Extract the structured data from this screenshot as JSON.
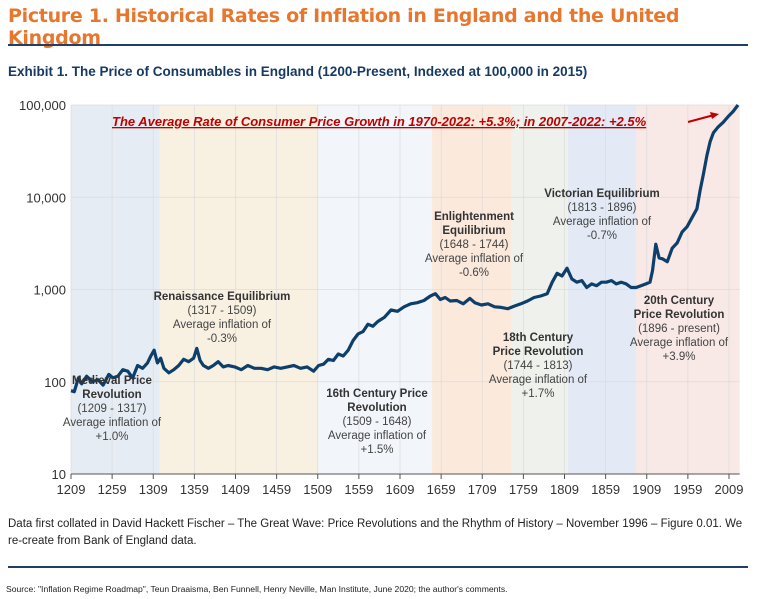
{
  "page_title": "Picture 1. Historical Rates of Inflation in England and the United Kingdom",
  "exhibit_title": "Exhibit 1. The Price of Consumables in England (1200-Present, Indexed at 100,000 in 2015)",
  "footnote": "Data first collated in David Hackett Fischer – The Great Wave: Price Revolutions and the Rhythm of History – November 1996 – Figure 0.01. We re-create from Bank of England data.",
  "source": "Source: \"Inflation Regime Roadmap\", Teun Draaisma, Ben Funnell, Henry Neville, Man Institute, June 2020; the author's comments.",
  "colors": {
    "title": "#E8772E",
    "line": "#0E3F6B",
    "annotation": "#C00000",
    "rule": "#1F3F66"
  },
  "chart_data": {
    "type": "line",
    "title": "Exhibit 1. The Price of Consumables in England (1200-Present, Indexed at 100,000 in 2015)",
    "yscale": "log",
    "ylim": [
      10,
      100000
    ],
    "xlim": [
      1209,
      2022
    ],
    "grid": true,
    "y_ticks": [
      "10",
      "100",
      "1,000",
      "10,000",
      "100,000"
    ],
    "x_ticks": [
      "1209",
      "1259",
      "1309",
      "1359",
      "1409",
      "1459",
      "1509",
      "1559",
      "1609",
      "1659",
      "1709",
      "1759",
      "1809",
      "1859",
      "1909",
      "1959",
      "2009"
    ],
    "annotation": "The Average Rate of Consumer Price Growth in 1970-2022: +5.3%; in 2007-2022: +2.5%",
    "periods": [
      {
        "name": "Medieval Price Revolution",
        "range": "(1209 - 1317)",
        "inflation_label": "Average inflation of",
        "inflation": "+1.0%",
        "start": 1209,
        "end": 1317,
        "color": "#E6ECF4"
      },
      {
        "name": "Renaissance Equilibrium",
        "range": "(1317 - 1509)",
        "inflation_label": "Average inflation of",
        "inflation": "-0.3%",
        "start": 1317,
        "end": 1509,
        "color": "#F8F1E2"
      },
      {
        "name": "16th Century Price Revolution",
        "range": "(1509 - 1648)",
        "inflation_label": "Average inflation of",
        "inflation": "+1.5%",
        "start": 1509,
        "end": 1648,
        "color": "#F2F5FA"
      },
      {
        "name": "Enlightenment Equilibrium",
        "range": "(1648 - 1744)",
        "inflation_label": "Average inflation of",
        "inflation": "-0.6%",
        "start": 1648,
        "end": 1744,
        "color": "#FBE9DC"
      },
      {
        "name": "18th Century Price Revolution",
        "range": "(1744 - 1813)",
        "inflation_label": "Average inflation of",
        "inflation": "+1.7%",
        "start": 1744,
        "end": 1813,
        "color": "#EEF1EC"
      },
      {
        "name": "Victorian Equilibrium",
        "range": "(1813 - 1896)",
        "inflation_label": "Average inflation of",
        "inflation": "-0.7%",
        "start": 1813,
        "end": 1896,
        "color": "#E3EAF5"
      },
      {
        "name": "20th Century Price Revolution",
        "range": "(1896 - present)",
        "inflation_label": "Average inflation of",
        "inflation": "+3.9%",
        "start": 1896,
        "end": 2022,
        "color": "#F8E8E6"
      }
    ],
    "series": [
      {
        "x": [
          1209,
          1213,
          1218,
          1222,
          1228,
          1235,
          1242,
          1248,
          1255,
          1260,
          1266,
          1272,
          1278,
          1284,
          1290,
          1296,
          1302,
          1306,
          1310,
          1314,
          1318,
          1322,
          1328,
          1334,
          1340,
          1346,
          1352,
          1358,
          1362,
          1366,
          1370,
          1376,
          1382,
          1388,
          1394,
          1400,
          1408,
          1416,
          1424,
          1432,
          1440,
          1448,
          1456,
          1464,
          1472,
          1480,
          1488,
          1496,
          1504,
          1510,
          1516,
          1522,
          1528,
          1534,
          1540,
          1546,
          1552,
          1558,
          1564,
          1570,
          1576,
          1582,
          1590,
          1598,
          1606,
          1614,
          1622,
          1630,
          1638,
          1646,
          1652,
          1658,
          1664,
          1670,
          1678,
          1686,
          1694,
          1700,
          1708,
          1716,
          1724,
          1732,
          1740,
          1748,
          1756,
          1764,
          1772,
          1780,
          1788,
          1794,
          1800,
          1806,
          1812,
          1818,
          1824,
          1830,
          1836,
          1842,
          1848,
          1854,
          1860,
          1866,
          1872,
          1878,
          1884,
          1890,
          1896,
          1902,
          1908,
          1913,
          1916,
          1920,
          1924,
          1928,
          1934,
          1940,
          1946,
          1952,
          1958,
          1964,
          1970,
          1974,
          1978,
          1982,
          1986,
          1990,
          1996,
          2002,
          2008,
          2014,
          2020
        ],
        "y": [
          80,
          78,
          110,
          95,
          115,
          100,
          105,
          92,
          120,
          110,
          115,
          135,
          130,
          110,
          150,
          140,
          160,
          190,
          220,
          160,
          180,
          140,
          125,
          135,
          150,
          175,
          165,
          180,
          230,
          170,
          150,
          140,
          150,
          165,
          145,
          150,
          145,
          135,
          150,
          140,
          140,
          135,
          145,
          140,
          145,
          150,
          140,
          145,
          130,
          150,
          155,
          175,
          170,
          200,
          190,
          220,
          280,
          330,
          350,
          420,
          400,
          450,
          500,
          600,
          580,
          650,
          700,
          720,
          760,
          850,
          900,
          780,
          820,
          750,
          760,
          700,
          800,
          720,
          680,
          700,
          650,
          640,
          620,
          660,
          700,
          750,
          820,
          850,
          900,
          1200,
          1500,
          1400,
          1700,
          1300,
          1200,
          1250,
          1050,
          1150,
          1100,
          1200,
          1200,
          1250,
          1150,
          1200,
          1150,
          1050,
          1050,
          1100,
          1150,
          1200,
          1600,
          3100,
          2200,
          2150,
          2000,
          2800,
          3200,
          4200,
          4800,
          6000,
          7500,
          12000,
          18000,
          28000,
          40000,
          50000,
          58000,
          65000,
          75000,
          85000,
          100000
        ]
      }
    ]
  }
}
